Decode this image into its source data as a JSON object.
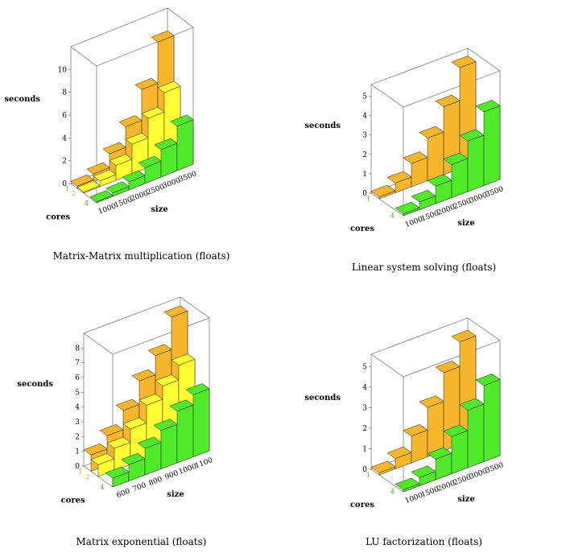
{
  "colors": {
    "core1": "#f8b62c",
    "core2": "#ffff33",
    "core4": "#50ea2a"
  },
  "chart_data": [
    {
      "type": "bar3d",
      "title": "Matrix-Matrix multiplication (floats)",
      "zlabel": "seconds",
      "ylabel": "cores",
      "xlabel": "size",
      "z_ticks": [
        "0",
        "2",
        "4",
        "6",
        "8",
        "10"
      ],
      "zmax": 12,
      "x_ticks": [
        "1000",
        "1500",
        "2000",
        "2500",
        "3000",
        "3500"
      ],
      "categories": [
        "1000",
        "1500",
        "2000",
        "2500",
        "3000",
        "3500"
      ],
      "series": [
        {
          "name": "1",
          "values": [
            0.2,
            0.7,
            1.9,
            3.7,
            6.4,
            10.0
          ]
        },
        {
          "name": "2",
          "values": [
            0.1,
            0.5,
            1.3,
            2.6,
            4.3,
            6.0
          ]
        },
        {
          "name": "4",
          "values": [
            0.1,
            0.3,
            0.7,
            1.4,
            2.4,
            3.9
          ]
        }
      ]
    },
    {
      "type": "bar3d",
      "title": "Linear system solving (floats)",
      "zlabel": "seconds",
      "ylabel": "cores",
      "xlabel": "size",
      "z_ticks": [
        "0",
        "1",
        "2",
        "3",
        "4",
        "5"
      ],
      "zmax": 5.6,
      "x_ticks": [
        "1000",
        "1500",
        "2000",
        "2500",
        "3000",
        "3500"
      ],
      "categories": [
        "1000",
        "1500",
        "2000",
        "2500",
        "3000",
        "3500"
      ],
      "series": [
        {
          "name": "1",
          "values": [
            0.1,
            0.5,
            1.2,
            2.2,
            3.5,
            5.2
          ]
        },
        {
          "name": "4",
          "values": [
            0.1,
            0.4,
            0.9,
            1.7,
            2.6,
            3.8
          ]
        }
      ]
    },
    {
      "type": "bar3d",
      "title": "Matrix exponential (floats)",
      "zlabel": "seconds",
      "ylabel": "cores",
      "xlabel": "size",
      "z_ticks": [
        "0",
        "1",
        "2",
        "3",
        "4",
        "5",
        "6",
        "7",
        "8"
      ],
      "zmax": 9,
      "x_ticks": [
        "600",
        "700",
        "800",
        "900",
        "1000",
        "1100"
      ],
      "categories": [
        "600",
        "700",
        "800",
        "900",
        "1000",
        "1100"
      ],
      "series": [
        {
          "name": "1",
          "values": [
            1.1,
            2.0,
            3.3,
            4.9,
            6.2,
            8.4
          ]
        },
        {
          "name": "2",
          "values": [
            0.8,
            1.5,
            2.4,
            3.6,
            4.5,
            5.5
          ]
        },
        {
          "name": "4",
          "values": [
            0.6,
            1.1,
            1.8,
            2.6,
            3.5,
            4.2
          ]
        }
      ]
    },
    {
      "type": "bar3d",
      "title": "LU factorization (floats)",
      "zlabel": "seconds",
      "ylabel": "cores",
      "xlabel": "size",
      "z_ticks": [
        "0",
        "1",
        "2",
        "3",
        "4",
        "5"
      ],
      "zmax": 5.6,
      "x_ticks": [
        "1000",
        "1500",
        "2000",
        "2500",
        "3000",
        "3500"
      ],
      "categories": [
        "1000",
        "1500",
        "2000",
        "2500",
        "3000",
        "3500"
      ],
      "series": [
        {
          "name": "1",
          "values": [
            0.1,
            0.5,
            1.3,
            2.4,
            3.8,
            5.0
          ]
        },
        {
          "name": "4",
          "values": [
            0.1,
            0.4,
            1.0,
            1.8,
            2.8,
            3.7
          ]
        }
      ]
    }
  ]
}
